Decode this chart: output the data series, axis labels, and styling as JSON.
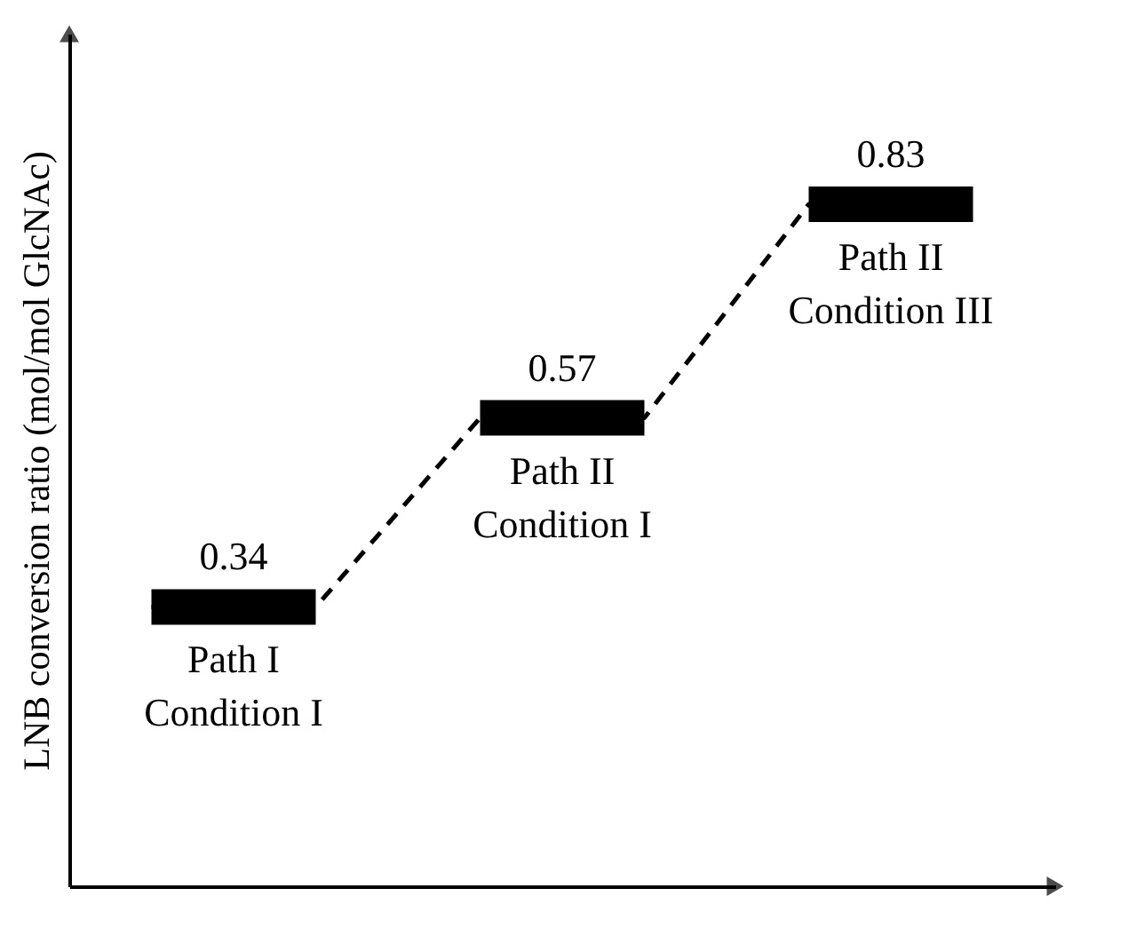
{
  "chart_data": {
    "type": "other",
    "ylabel": "LNB conversion ratio (mol/mol GlcNAc)",
    "categories": [
      "Path I\nCondition I",
      "Path II\nCondition I",
      "Path II\nCondition III"
    ],
    "values": [
      0.34,
      0.57,
      0.83
    ],
    "color": "#000000",
    "data_labels": true
  }
}
